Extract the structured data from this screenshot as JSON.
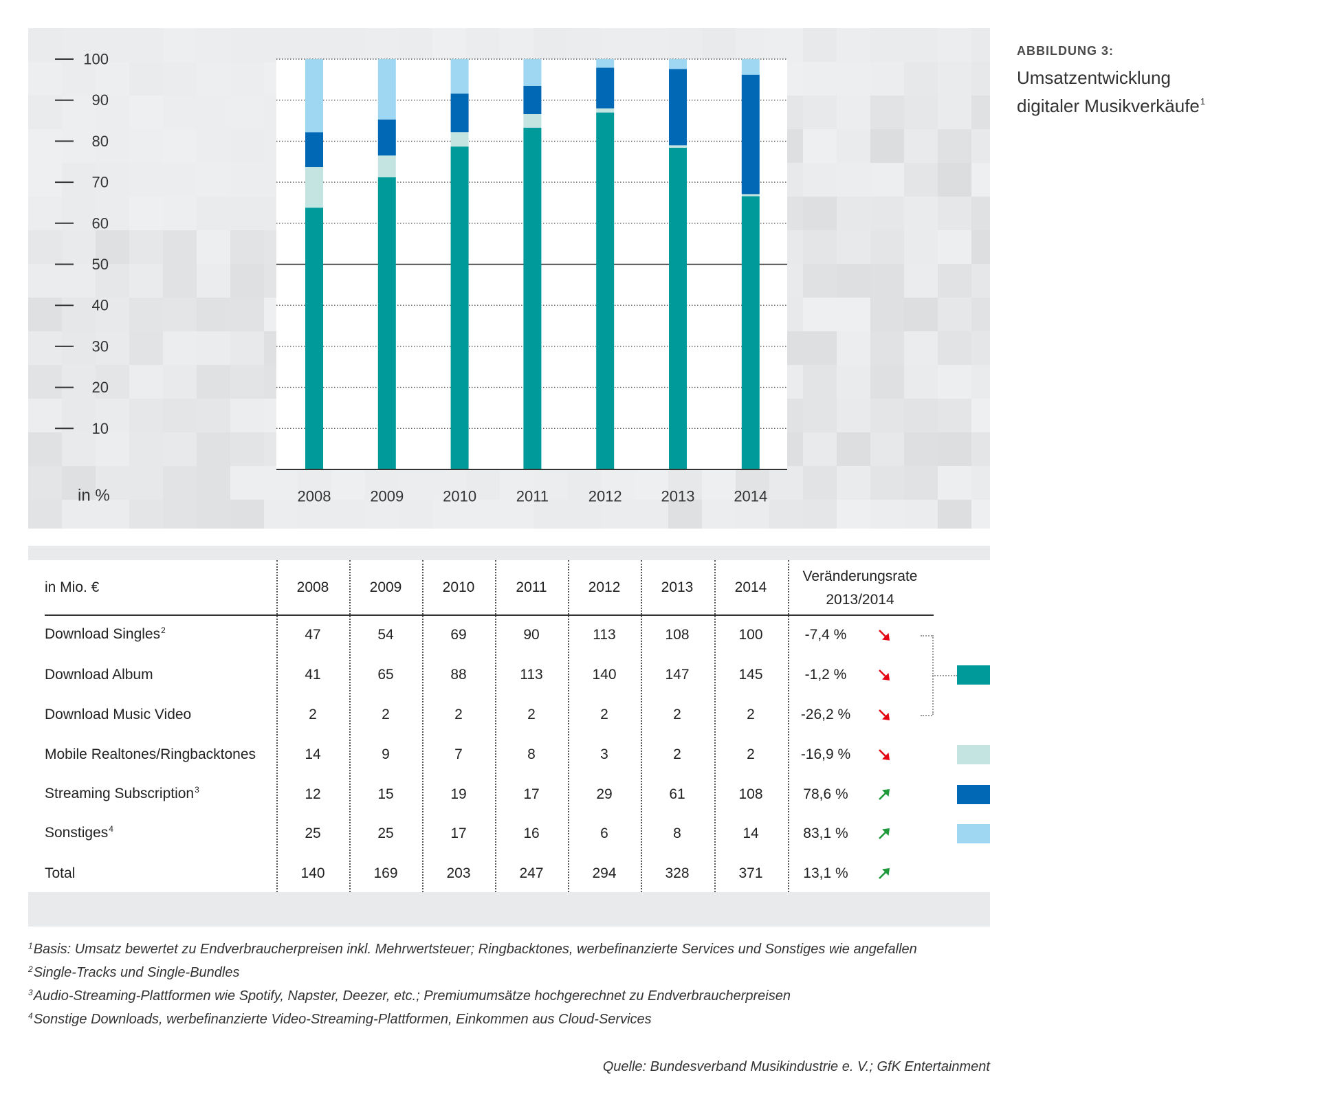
{
  "figure": {
    "label": "ABBILDUNG 3:",
    "title_line1": "Umsatzentwicklung",
    "title_line2": "digitaler Musikverkäufe",
    "title_sup": "1"
  },
  "chart_data": {
    "type": "bar",
    "stacked": true,
    "categories": [
      "2008",
      "2009",
      "2010",
      "2011",
      "2012",
      "2013",
      "2014"
    ],
    "series": [
      {
        "color": "#009a9a",
        "values": [
          63.8,
          71.2,
          78.7,
          83.3,
          87.0,
          78.4,
          66.6
        ]
      },
      {
        "color": "#c3e4e1",
        "values": [
          9.9,
          5.3,
          3.5,
          3.3,
          1.0,
          0.6,
          0.5
        ]
      },
      {
        "color": "#0068b4",
        "values": [
          8.5,
          8.8,
          9.4,
          6.9,
          9.9,
          18.6,
          29.1
        ]
      },
      {
        "color": "#9fd7f2",
        "values": [
          17.8,
          14.7,
          8.4,
          6.5,
          2.1,
          2.4,
          3.8
        ]
      }
    ],
    "ylabel": "in %",
    "ylim": [
      0,
      100
    ],
    "yticks": [
      100,
      90,
      80,
      70,
      60,
      50,
      40,
      30,
      20,
      10
    ],
    "reference_line": 50,
    "grid": true
  },
  "table": {
    "unit_label": "in Mio. €",
    "years": [
      "2008",
      "2009",
      "2010",
      "2011",
      "2012",
      "2013",
      "2014"
    ],
    "change_header_line1": "Veränderungsrate",
    "change_header_line2": "2013/2014",
    "rows": [
      {
        "label": "Download Singles",
        "sup": "2",
        "values": [
          47,
          54,
          69,
          90,
          113,
          108,
          100
        ],
        "change": "-7,4 %",
        "trend_icon": "arrow-down-right-icon",
        "trend_color": "#e30613"
      },
      {
        "label": "Download Album",
        "values": [
          41,
          65,
          88,
          113,
          140,
          147,
          145
        ],
        "change": "-1,2 %",
        "trend_icon": "arrow-down-right-icon",
        "trend_color": "#e30613"
      },
      {
        "label": "Download Music Video",
        "values": [
          2,
          2,
          2,
          2,
          2,
          2,
          2
        ],
        "change": "-26,2 %",
        "trend_icon": "arrow-down-right-icon",
        "trend_color": "#e30613"
      },
      {
        "label": "Mobile Realtones/Ringbacktones",
        "values": [
          14,
          9,
          7,
          8,
          3,
          2,
          2
        ],
        "change": "-16,9 %",
        "trend_icon": "arrow-down-right-icon",
        "trend_color": "#e30613"
      },
      {
        "label": "Streaming Subscription",
        "sup": "3",
        "values": [
          12,
          15,
          19,
          17,
          29,
          61,
          108
        ],
        "change": "78,6 %",
        "trend_icon": "arrow-up-right-icon",
        "trend_color": "#1e9a3a"
      },
      {
        "label": "Sonstiges",
        "sup": "4",
        "values": [
          25,
          25,
          17,
          16,
          6,
          8,
          14
        ],
        "change": "83,1 %",
        "trend_icon": "arrow-up-right-icon",
        "trend_color": "#1e9a3a"
      },
      {
        "label": "Total",
        "values": [
          140,
          169,
          203,
          247,
          294,
          328,
          371
        ],
        "change": "13,1 %",
        "trend_icon": "arrow-up-right-icon",
        "trend_color": "#1e9a3a"
      }
    ]
  },
  "legend_swatches": [
    {
      "color": "#009a9a"
    },
    {
      "color": "#c3e4e1"
    },
    {
      "color": "#0068b4"
    },
    {
      "color": "#9fd7f2"
    }
  ],
  "footnotes": [
    {
      "num": "1",
      "text": "Basis: Umsatz bewertet zu Endverbraucherpreisen inkl. Mehrwertsteuer; Ringbacktones, werbefinanzierte Services und Sonstiges wie angefallen"
    },
    {
      "num": "2",
      "text": "Single-Tracks und Single-Bundles"
    },
    {
      "num": "3",
      "text": "Audio-Streaming-Plattformen wie Spotify, Napster, Deezer, etc.; Premiumumsätze hochgerechnet zu Endverbraucherpreisen"
    },
    {
      "num": "4",
      "text": "Sonstige Downloads, werbefinanzierte Video-Streaming-Plattformen, Einkommen aus Cloud-Services"
    }
  ],
  "source": "Quelle: Bundesverband Musikindustrie e. V.; GfK Entertainment"
}
